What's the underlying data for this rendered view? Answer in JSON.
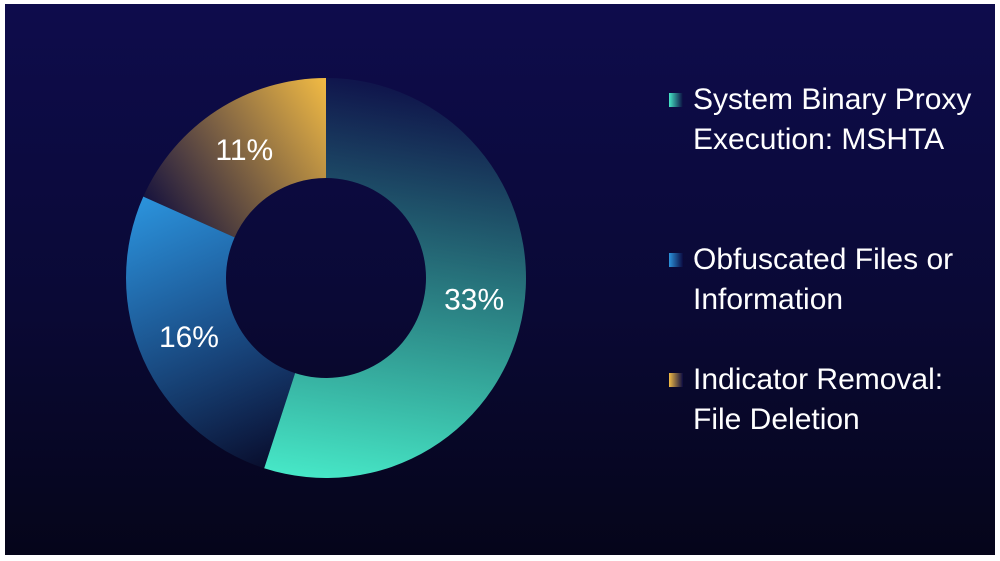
{
  "chart_data": {
    "type": "pie",
    "labels": [
      "System Binary Proxy Execution: MSHTA",
      "Obfuscated Files or Information",
      "Indicator Removal: File Deletion"
    ],
    "values": [
      33,
      16,
      11
    ],
    "value_labels": [
      "33%",
      "16%",
      "11%"
    ],
    "colors": [
      "#46e6c6",
      "#2b93dc",
      "#f2bb44"
    ]
  }
}
